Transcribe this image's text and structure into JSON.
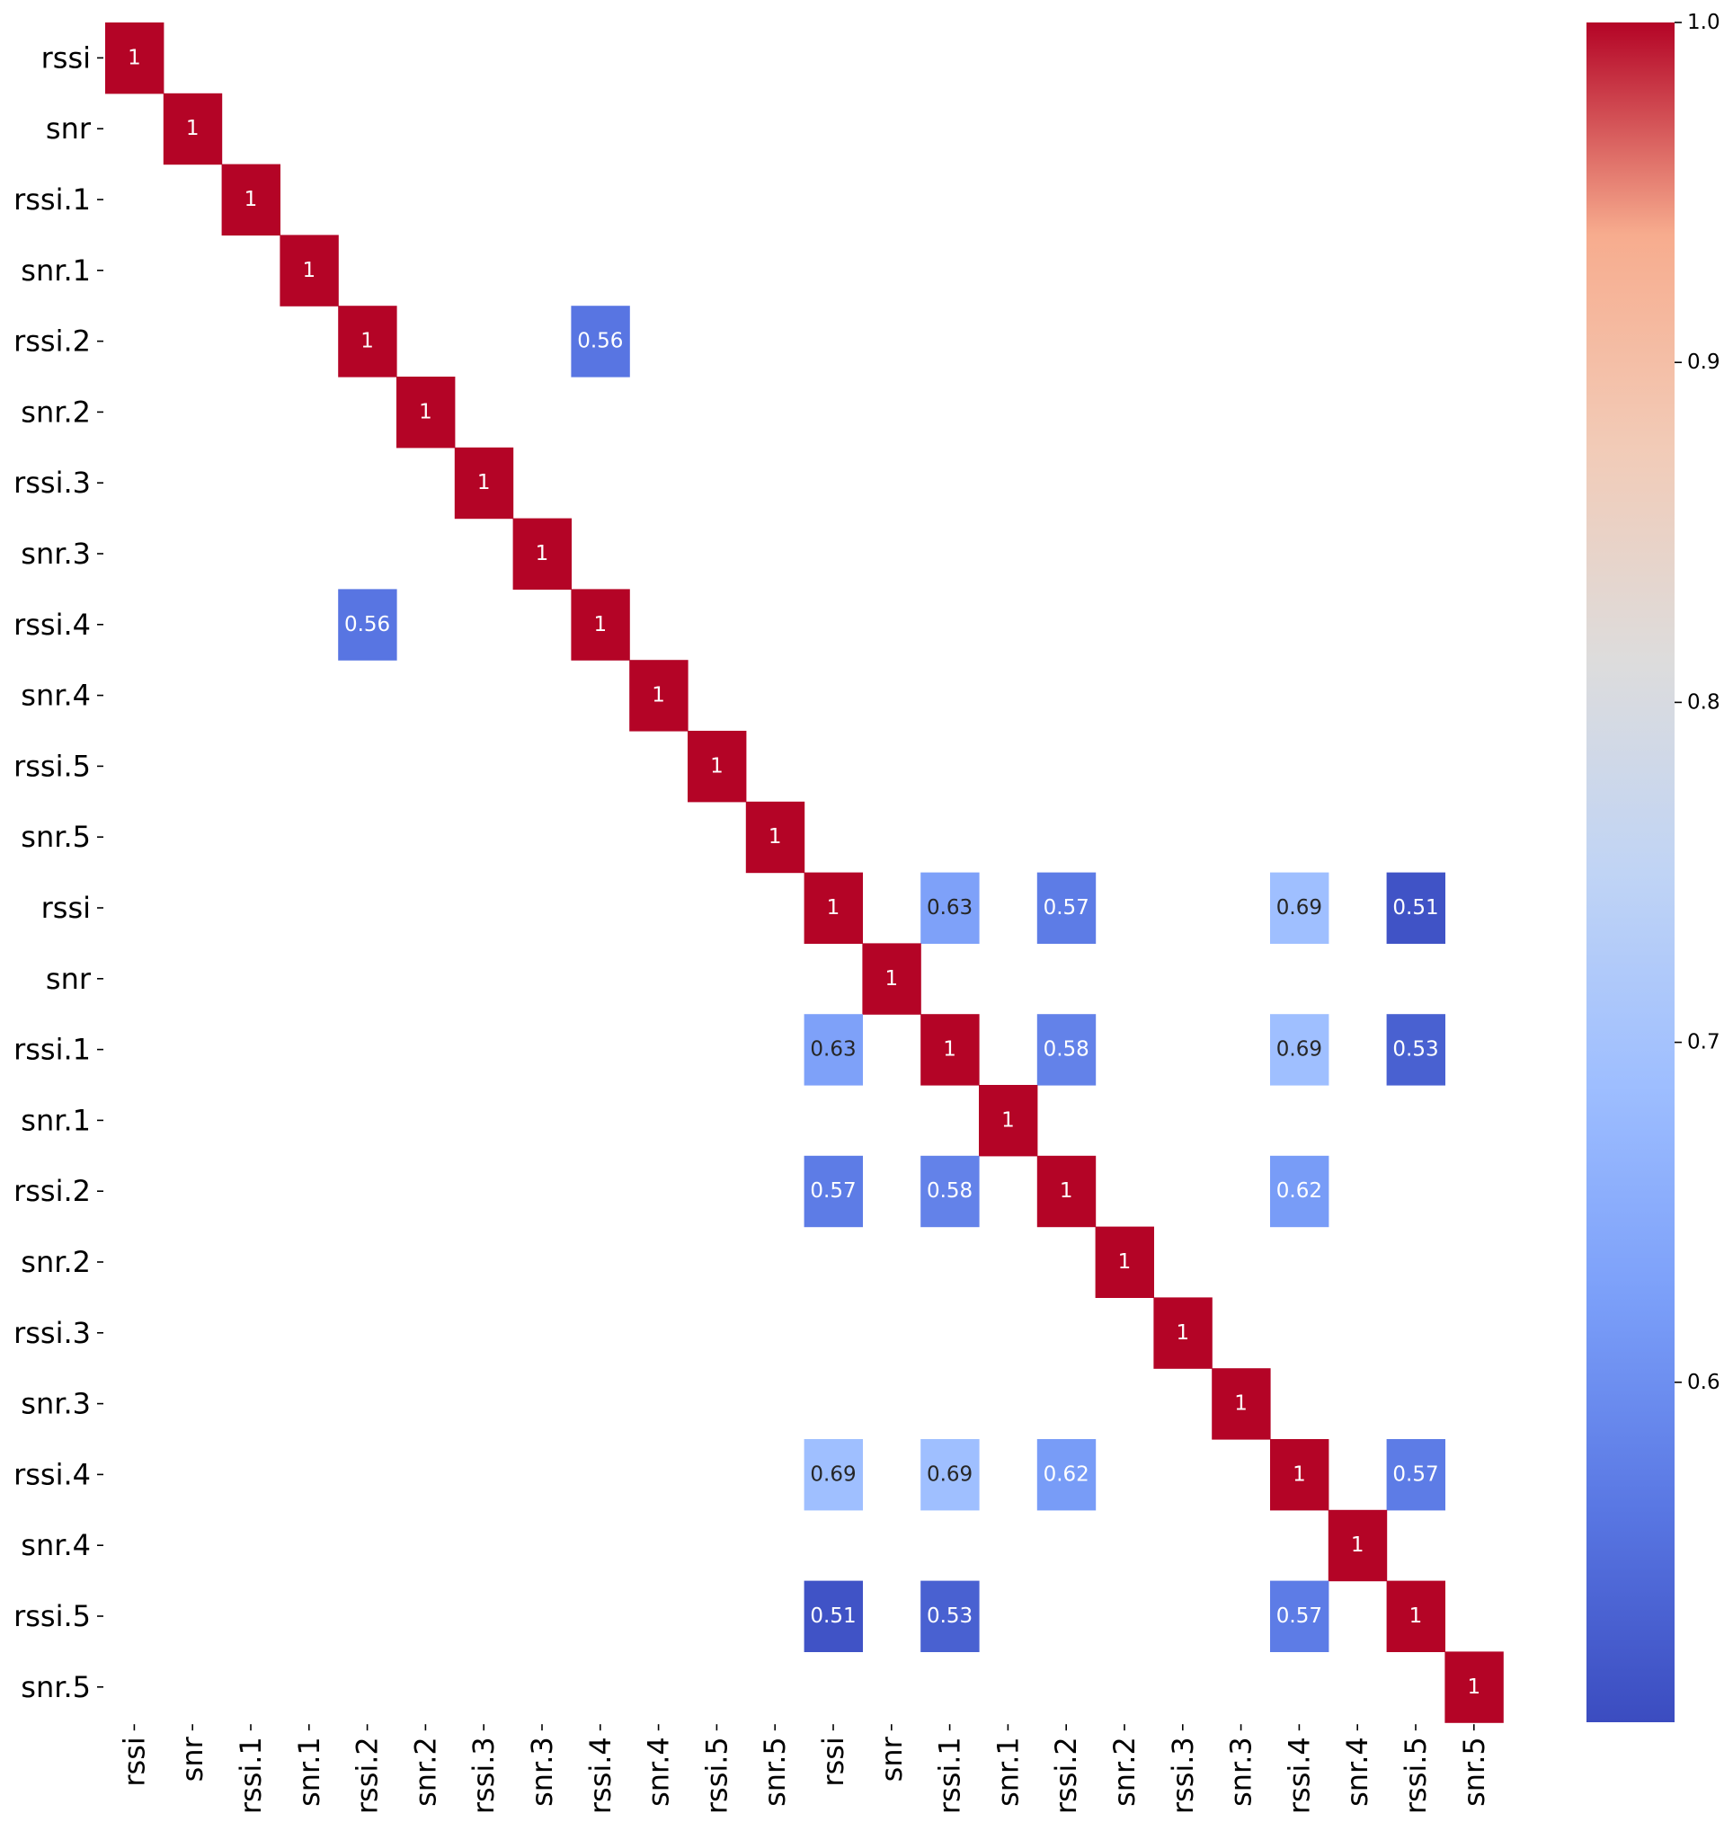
{
  "chart_data": {
    "type": "heatmap",
    "title": "",
    "xlabel": "",
    "ylabel": "",
    "colormap": "coolwarm",
    "row_labels": [
      "rssi",
      "snr",
      "rssi.1",
      "snr.1",
      "rssi.2",
      "snr.2",
      "rssi.3",
      "snr.3",
      "rssi.4",
      "snr.4",
      "rssi.5",
      "snr.5",
      "rssi",
      "snr",
      "rssi.1",
      "snr.1",
      "rssi.2",
      "snr.2",
      "rssi.3",
      "snr.3",
      "rssi.4",
      "snr.4",
      "rssi.5",
      "snr.5"
    ],
    "col_labels": [
      "rssi",
      "snr",
      "rssi.1",
      "snr.1",
      "rssi.2",
      "snr.2",
      "rssi.3",
      "snr.3",
      "rssi.4",
      "snr.4",
      "rssi.5",
      "snr.5",
      "rssi",
      "snr",
      "rssi.1",
      "snr.1",
      "rssi.2",
      "snr.2",
      "rssi.3",
      "snr.3",
      "rssi.4",
      "snr.4",
      "rssi.5",
      "snr.5"
    ],
    "cells": [
      {
        "row": 0,
        "col": 0,
        "value": 1,
        "label": "1"
      },
      {
        "row": 1,
        "col": 1,
        "value": 1,
        "label": "1"
      },
      {
        "row": 2,
        "col": 2,
        "value": 1,
        "label": "1"
      },
      {
        "row": 3,
        "col": 3,
        "value": 1,
        "label": "1"
      },
      {
        "row": 4,
        "col": 4,
        "value": 1,
        "label": "1"
      },
      {
        "row": 4,
        "col": 8,
        "value": 0.56,
        "label": "0.56"
      },
      {
        "row": 5,
        "col": 5,
        "value": 1,
        "label": "1"
      },
      {
        "row": 6,
        "col": 6,
        "value": 1,
        "label": "1"
      },
      {
        "row": 7,
        "col": 7,
        "value": 1,
        "label": "1"
      },
      {
        "row": 8,
        "col": 4,
        "value": 0.56,
        "label": "0.56"
      },
      {
        "row": 8,
        "col": 8,
        "value": 1,
        "label": "1"
      },
      {
        "row": 9,
        "col": 9,
        "value": 1,
        "label": "1"
      },
      {
        "row": 10,
        "col": 10,
        "value": 1,
        "label": "1"
      },
      {
        "row": 11,
        "col": 11,
        "value": 1,
        "label": "1"
      },
      {
        "row": 12,
        "col": 12,
        "value": 1,
        "label": "1"
      },
      {
        "row": 12,
        "col": 14,
        "value": 0.63,
        "label": "0.63"
      },
      {
        "row": 12,
        "col": 16,
        "value": 0.57,
        "label": "0.57"
      },
      {
        "row": 12,
        "col": 20,
        "value": 0.69,
        "label": "0.69"
      },
      {
        "row": 12,
        "col": 22,
        "value": 0.51,
        "label": "0.51"
      },
      {
        "row": 13,
        "col": 13,
        "value": 1,
        "label": "1"
      },
      {
        "row": 14,
        "col": 12,
        "value": 0.63,
        "label": "0.63"
      },
      {
        "row": 14,
        "col": 14,
        "value": 1,
        "label": "1"
      },
      {
        "row": 14,
        "col": 16,
        "value": 0.58,
        "label": "0.58"
      },
      {
        "row": 14,
        "col": 20,
        "value": 0.69,
        "label": "0.69"
      },
      {
        "row": 14,
        "col": 22,
        "value": 0.53,
        "label": "0.53"
      },
      {
        "row": 15,
        "col": 15,
        "value": 1,
        "label": "1"
      },
      {
        "row": 16,
        "col": 12,
        "value": 0.57,
        "label": "0.57"
      },
      {
        "row": 16,
        "col": 14,
        "value": 0.58,
        "label": "0.58"
      },
      {
        "row": 16,
        "col": 16,
        "value": 1,
        "label": "1"
      },
      {
        "row": 16,
        "col": 20,
        "value": 0.62,
        "label": "0.62"
      },
      {
        "row": 17,
        "col": 17,
        "value": 1,
        "label": "1"
      },
      {
        "row": 18,
        "col": 18,
        "value": 1,
        "label": "1"
      },
      {
        "row": 19,
        "col": 19,
        "value": 1,
        "label": "1"
      },
      {
        "row": 20,
        "col": 12,
        "value": 0.69,
        "label": "0.69"
      },
      {
        "row": 20,
        "col": 14,
        "value": 0.69,
        "label": "0.69"
      },
      {
        "row": 20,
        "col": 16,
        "value": 0.62,
        "label": "0.62"
      },
      {
        "row": 20,
        "col": 20,
        "value": 1,
        "label": "1"
      },
      {
        "row": 20,
        "col": 22,
        "value": 0.57,
        "label": "0.57"
      },
      {
        "row": 21,
        "col": 21,
        "value": 1,
        "label": "1"
      },
      {
        "row": 22,
        "col": 12,
        "value": 0.51,
        "label": "0.51"
      },
      {
        "row": 22,
        "col": 14,
        "value": 0.53,
        "label": "0.53"
      },
      {
        "row": 22,
        "col": 20,
        "value": 0.57,
        "label": "0.57"
      },
      {
        "row": 22,
        "col": 22,
        "value": 1,
        "label": "1"
      },
      {
        "row": 23,
        "col": 23,
        "value": 1,
        "label": "1"
      }
    ],
    "colorbar": {
      "vmin": 0.5,
      "vmax": 1.0,
      "ticks": [
        0.6,
        0.7,
        0.8,
        0.9,
        1.0
      ],
      "tick_labels": [
        "0.6",
        "0.7",
        "0.8",
        "0.9",
        "1.0"
      ]
    }
  }
}
